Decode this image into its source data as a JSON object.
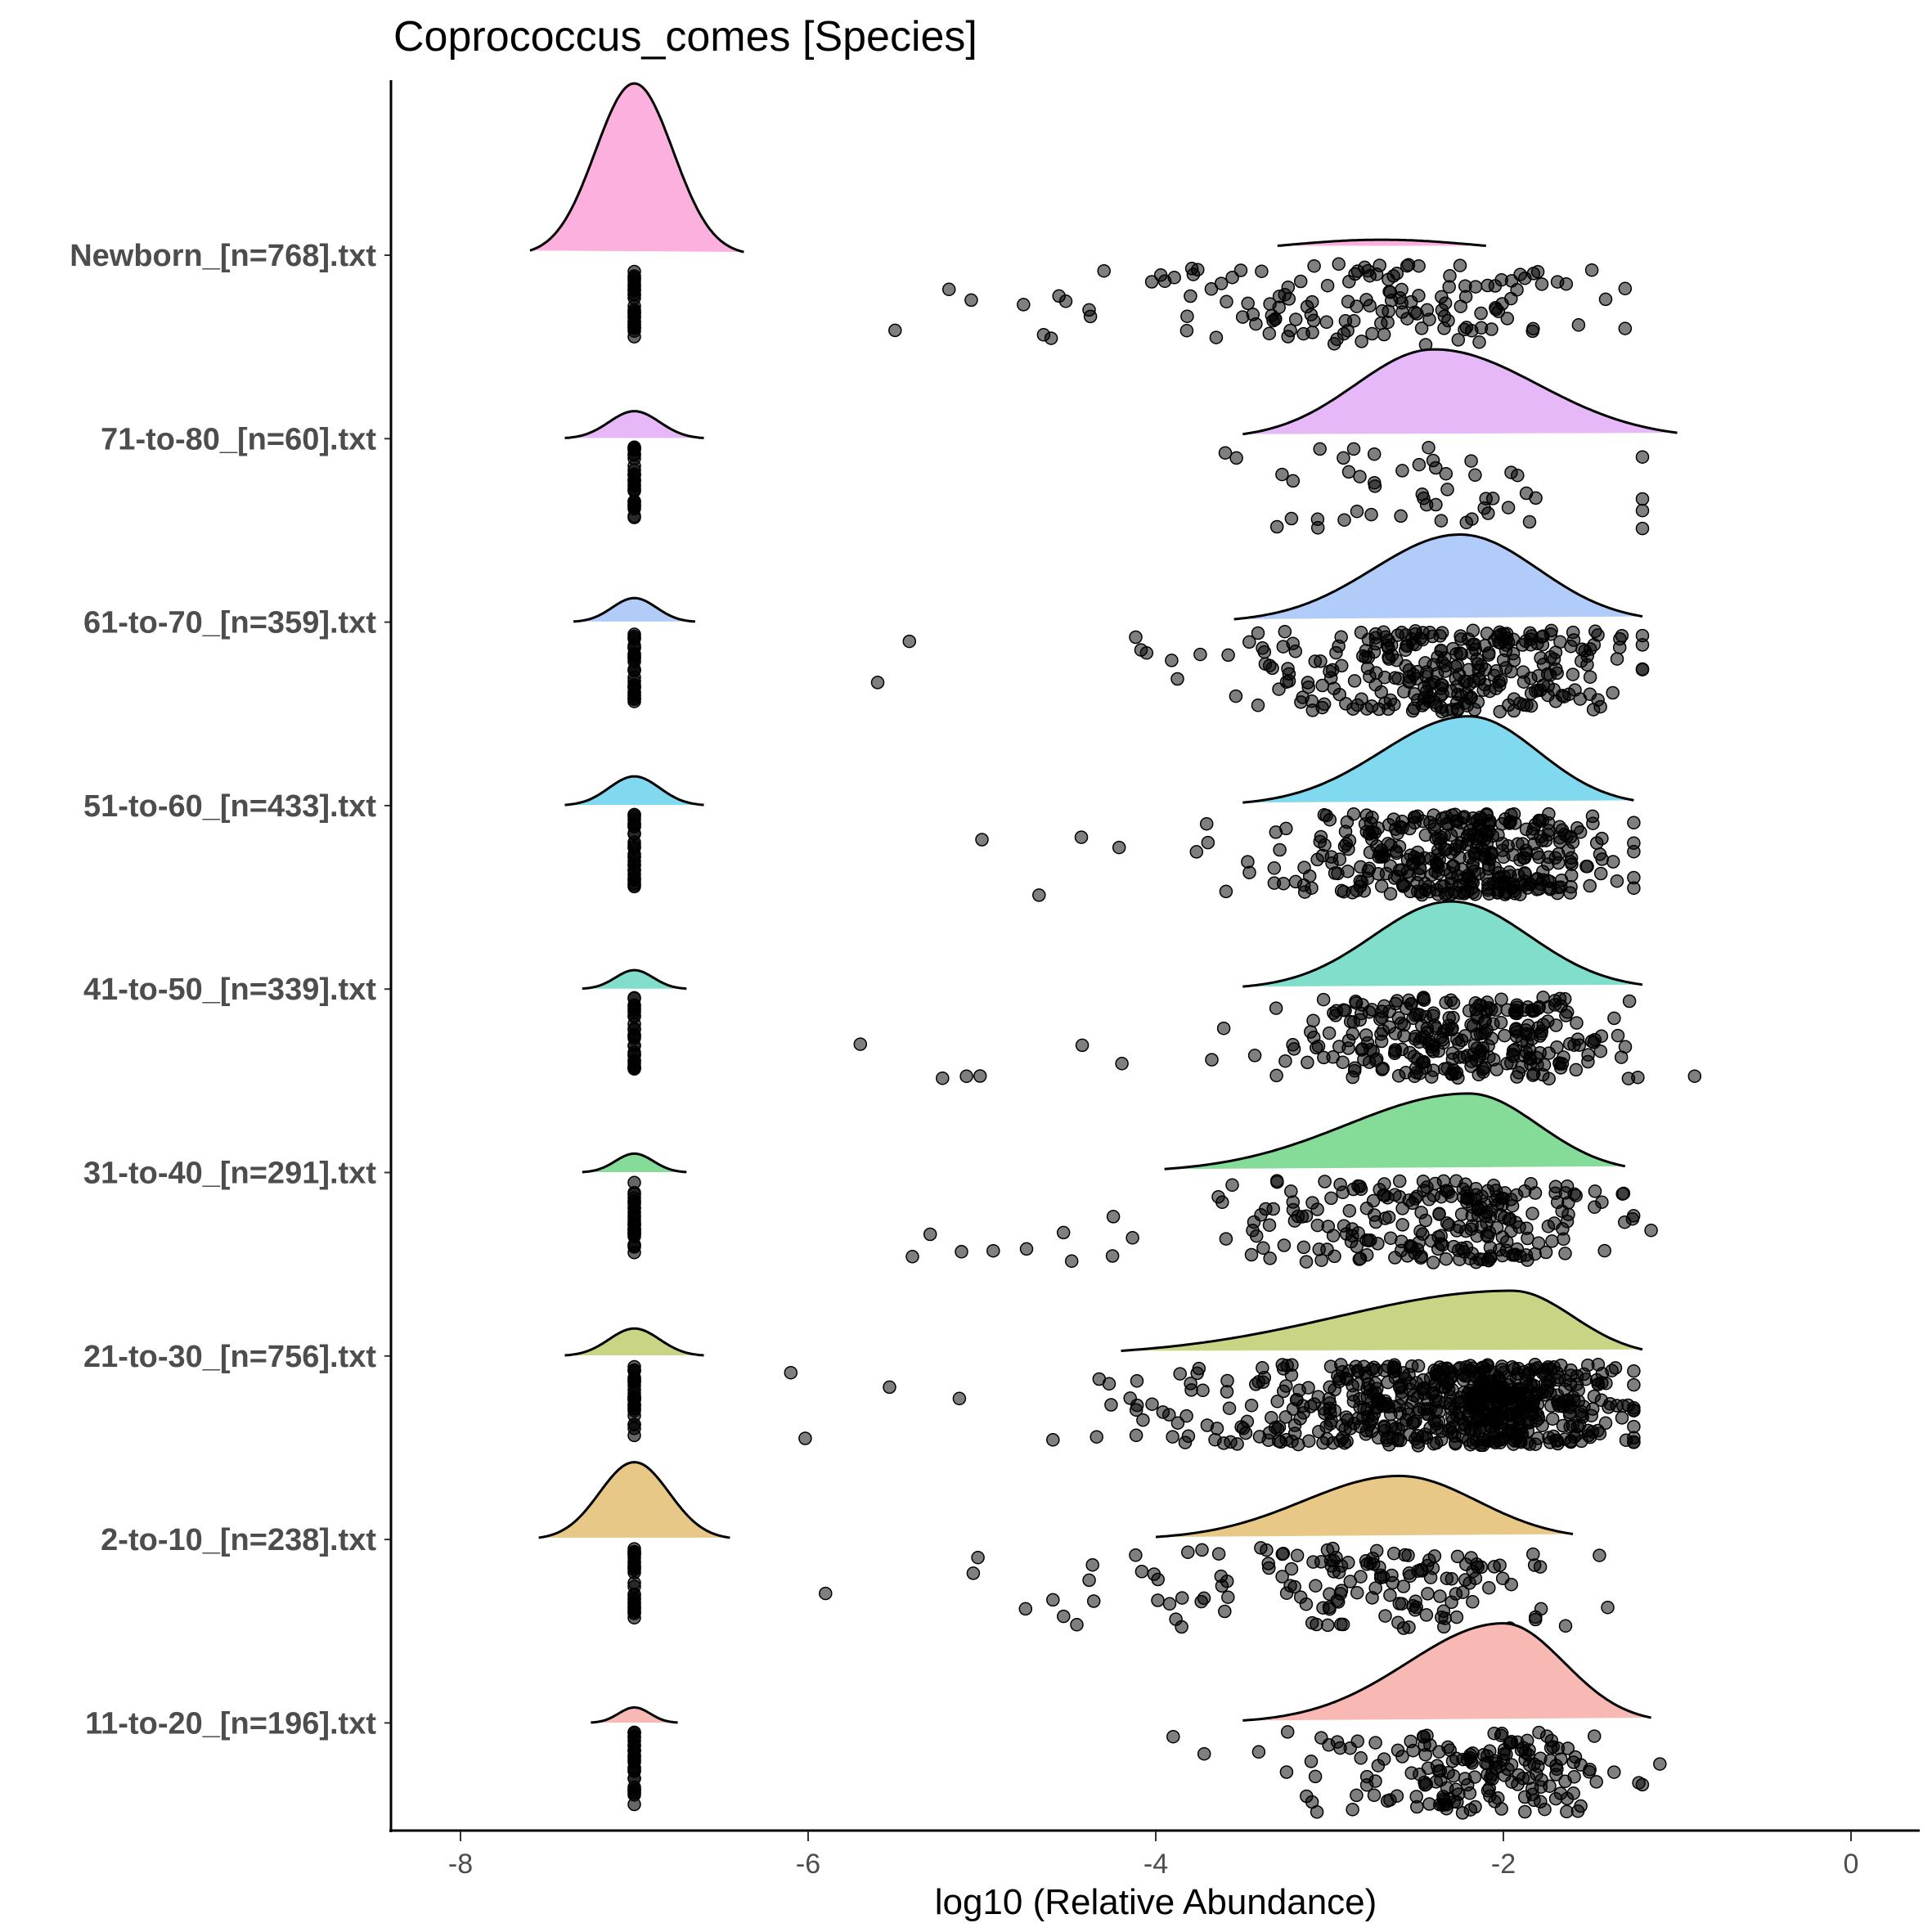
{
  "chart_data": {
    "type": "raincloud",
    "title": "Coprococcus_comes [Species]",
    "xlabel": "log10 (Relative Abundance)",
    "ylabel": "",
    "xlim": [
      -8.4,
      0.4
    ],
    "xticks": [
      -8,
      -6,
      -4,
      -2,
      0
    ],
    "xtick_labels": [
      "-8",
      "-6",
      "-4",
      "-2",
      "0"
    ],
    "grid": false,
    "legend": "none",
    "zero_value": -7,
    "groups": [
      {
        "label": "Newborn_[n=768].txt",
        "color": "#FBB0DD",
        "zero_density": {
          "peak": 1.0,
          "range": [
            -7.6,
            -6.37
          ]
        },
        "density": {
          "peak_x": -2.7,
          "peak": 0.09,
          "sd_left": 0.6,
          "sd_right": 0.6,
          "range": [
            -3.3,
            -2.1
          ]
        },
        "points": {
          "n_nonzero": 150,
          "mean": -2.7,
          "sd_left": 0.9,
          "sd_right": 0.6,
          "min": -5.5,
          "max": -1.3
        }
      },
      {
        "label": "71-to-80_[n=60].txt",
        "color": "#E6B8F7",
        "zero_density": {
          "peak": 0.16,
          "range": [
            -7.4,
            -6.6
          ]
        },
        "density": {
          "peak_x": -2.4,
          "peak": 0.52,
          "sd_left": 0.45,
          "sd_right": 0.6,
          "range": [
            -3.5,
            -1.0
          ]
        },
        "points": {
          "n_nonzero": 50,
          "mean": -2.3,
          "sd_left": 0.5,
          "sd_right": 0.6,
          "min": -3.6,
          "max": -1.2
        }
      },
      {
        "label": "61-to-70_[n=359].txt",
        "color": "#B2CCF9",
        "zero_density": {
          "peak": 0.14,
          "range": [
            -7.35,
            -6.65
          ]
        },
        "density": {
          "peak_x": -2.25,
          "peak": 0.51,
          "sd_left": 0.5,
          "sd_right": 0.45,
          "range": [
            -3.55,
            -1.2
          ]
        },
        "points": {
          "n_nonzero": 300,
          "mean": -2.25,
          "sd_left": 0.55,
          "sd_right": 0.45,
          "min": -5.6,
          "max": -1.2
        }
      },
      {
        "label": "51-to-60_[n=433].txt",
        "color": "#80D9EE",
        "zero_density": {
          "peak": 0.17,
          "range": [
            -7.4,
            -6.6
          ]
        },
        "density": {
          "peak_x": -2.2,
          "peak": 0.52,
          "sd_left": 0.5,
          "sd_right": 0.4,
          "range": [
            -3.5,
            -1.25
          ]
        },
        "points": {
          "n_nonzero": 380,
          "mean": -2.2,
          "sd_left": 0.5,
          "sd_right": 0.4,
          "min": -5.0,
          "max": -1.25
        }
      },
      {
        "label": "41-to-50_[n=339].txt",
        "color": "#80DECB",
        "zero_density": {
          "peak": 0.11,
          "range": [
            -7.3,
            -6.7
          ]
        },
        "density": {
          "peak_x": -2.3,
          "peak": 0.51,
          "sd_left": 0.45,
          "sd_right": 0.45,
          "range": [
            -3.5,
            -1.2
          ]
        },
        "points": {
          "n_nonzero": 290,
          "mean": -2.3,
          "sd_left": 0.5,
          "sd_right": 0.45,
          "min": -5.7,
          "max": -0.9
        }
      },
      {
        "label": "31-to-40_[n=291].txt",
        "color": "#85DB98",
        "zero_density": {
          "peak": 0.11,
          "range": [
            -7.3,
            -6.7
          ]
        },
        "density": {
          "peak_x": -2.2,
          "peak": 0.46,
          "sd_left": 0.7,
          "sd_right": 0.4,
          "range": [
            -3.95,
            -1.3
          ]
        },
        "points": {
          "n_nonzero": 250,
          "mean": -2.3,
          "sd_left": 0.65,
          "sd_right": 0.4,
          "min": -5.4,
          "max": -1.15
        }
      },
      {
        "label": "21-to-30_[n=756].txt",
        "color": "#C9D585",
        "zero_density": {
          "peak": 0.16,
          "range": [
            -7.4,
            -6.6
          ]
        },
        "density": {
          "peak_x": -1.95,
          "peak": 0.38,
          "sd_left": 1.0,
          "sd_right": 0.35,
          "range": [
            -4.2,
            -1.2
          ]
        },
        "points": {
          "n_nonzero": 650,
          "mean": -2.2,
          "sd_left": 0.8,
          "sd_right": 0.4,
          "min": -6.1,
          "max": -1.25
        }
      },
      {
        "label": "2-to-10_[n=238].txt",
        "color": "#E8C886",
        "zero_density": {
          "peak": 0.45,
          "range": [
            -7.55,
            -6.45
          ]
        },
        "density": {
          "peak_x": -2.6,
          "peak": 0.37,
          "sd_left": 0.55,
          "sd_right": 0.45,
          "range": [
            -4.0,
            -1.6
          ]
        },
        "points": {
          "n_nonzero": 150,
          "mean": -2.7,
          "sd_left": 0.7,
          "sd_right": 0.5,
          "min": -5.9,
          "max": -1.4
        }
      },
      {
        "label": "11-to-20_[n=196].txt",
        "color": "#F8B8B3",
        "zero_density": {
          "peak": 0.09,
          "range": [
            -7.25,
            -6.75
          ]
        },
        "density": {
          "peak_x": -2.0,
          "peak": 0.58,
          "sd_left": 0.55,
          "sd_right": 0.35,
          "range": [
            -3.5,
            -1.15
          ]
        },
        "points": {
          "n_nonzero": 180,
          "mean": -2.1,
          "sd_left": 0.45,
          "sd_right": 0.35,
          "min": -3.9,
          "max": -1.1
        }
      }
    ]
  }
}
